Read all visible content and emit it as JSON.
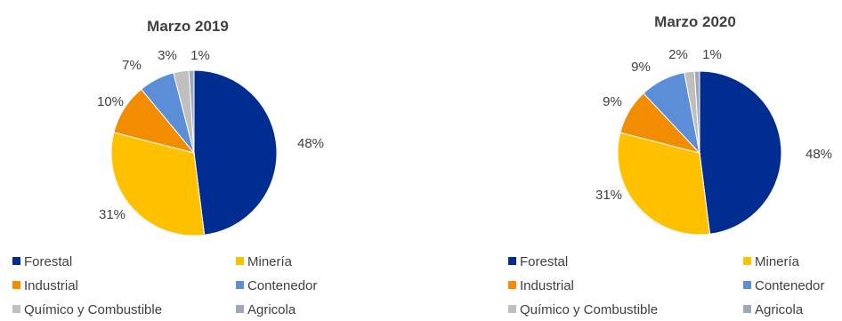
{
  "colors": {
    "Forestal": "#002d8f",
    "Minería": "#ffc000",
    "Industrial": "#f28c00",
    "Contenedor": "#5b8ed6",
    "Químico y Combustible": "#bfbfbf",
    "Agricola": "#9fa8b8"
  },
  "legend_order": [
    "Forestal",
    "Minería",
    "Industrial",
    "Contenedor",
    "Químico y Combustible",
    "Agricola"
  ],
  "chart_data": [
    {
      "type": "pie",
      "title": "Marzo 2019",
      "series": [
        {
          "name": "Forestal",
          "value": 48,
          "label": "48%"
        },
        {
          "name": "Minería",
          "value": 31,
          "label": "31%"
        },
        {
          "name": "Industrial",
          "value": 10,
          "label": "10%"
        },
        {
          "name": "Contenedor",
          "value": 7,
          "label": "7%"
        },
        {
          "name": "Químico y Combustible",
          "value": 3,
          "label": "3%"
        },
        {
          "name": "Agricola",
          "value": 1,
          "label": "1%"
        }
      ],
      "legend": [
        "Forestal",
        "Minería",
        "Industrial",
        "Contenedor",
        "Químico y Combustible",
        "Agricola"
      ]
    },
    {
      "type": "pie",
      "title": "Marzo 2020",
      "series": [
        {
          "name": "Forestal",
          "value": 48,
          "label": "48%"
        },
        {
          "name": "Minería",
          "value": 31,
          "label": "31%"
        },
        {
          "name": "Industrial",
          "value": 9,
          "label": "9%"
        },
        {
          "name": "Contenedor",
          "value": 9,
          "label": "9%"
        },
        {
          "name": "Químico y Combustible",
          "value": 2,
          "label": "2%"
        },
        {
          "name": "Agricola",
          "value": 1,
          "label": "1%"
        }
      ],
      "legend": [
        "Forestal",
        "Minería",
        "Industrial",
        "Contenedor",
        "Químico y Combustible",
        "Agricola"
      ]
    }
  ]
}
